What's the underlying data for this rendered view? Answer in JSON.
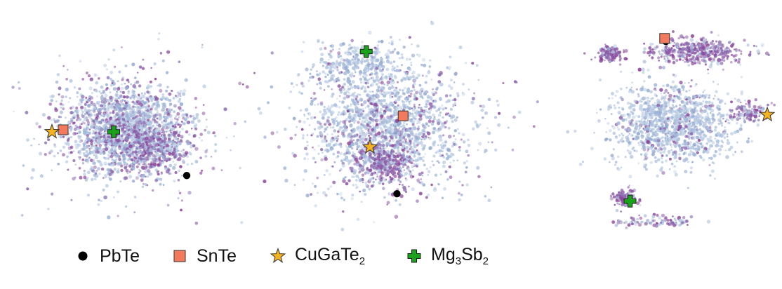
{
  "chart_data": {
    "type": "scatter",
    "panels": [
      {
        "points": [
          {
            "name": "PbTe",
            "x": 0.55,
            "y": -0.45
          },
          {
            "name": "SnTe",
            "x": -0.55,
            "y": 0.0
          },
          {
            "name": "CuGaTe2",
            "x": -0.65,
            "y": -0.02
          },
          {
            "name": "Mg3Sb2",
            "x": -0.1,
            "y": -0.02
          }
        ]
      },
      {
        "points": [
          {
            "name": "PbTe",
            "x": 0.1,
            "y": -0.65
          },
          {
            "name": "SnTe",
            "x": 0.15,
            "y": 0.1
          },
          {
            "name": "CuGaTe2",
            "x": -0.12,
            "y": -0.2
          },
          {
            "name": "Mg3Sb2",
            "x": -0.15,
            "y": 0.72
          }
        ]
      },
      {
        "points": [
          {
            "name": "PbTe",
            "x": 0.05,
            "y": 0.82
          },
          {
            "name": "SnTe",
            "x": 0.04,
            "y": 0.85
          },
          {
            "name": "CuGaTe2",
            "x": 0.9,
            "y": 0.1
          },
          {
            "name": "Mg3Sb2",
            "x": -0.25,
            "y": -0.75
          }
        ]
      }
    ],
    "legend": [
      {
        "key": "pbte",
        "label": "PbTe",
        "marker": "circle",
        "color": "#000000"
      },
      {
        "key": "snte",
        "label": "SnTe",
        "marker": "square",
        "color": "#f47a5e"
      },
      {
        "key": "cugate2",
        "label": "CuGaTe",
        "sub": "2",
        "marker": "star",
        "color": "#f5b21f"
      },
      {
        "key": "mg3sb2",
        "label_parts": [
          "Mg",
          "3",
          "Sb",
          "2"
        ],
        "marker": "plus",
        "color": "#19a31a"
      }
    ],
    "grid": false,
    "axes": false,
    "legend_placement": "bottom"
  },
  "colors": {
    "cloud_light": "#c8d8ea",
    "cloud_mid": "#8ea6cf",
    "cloud_purple": "#8b3a95"
  }
}
